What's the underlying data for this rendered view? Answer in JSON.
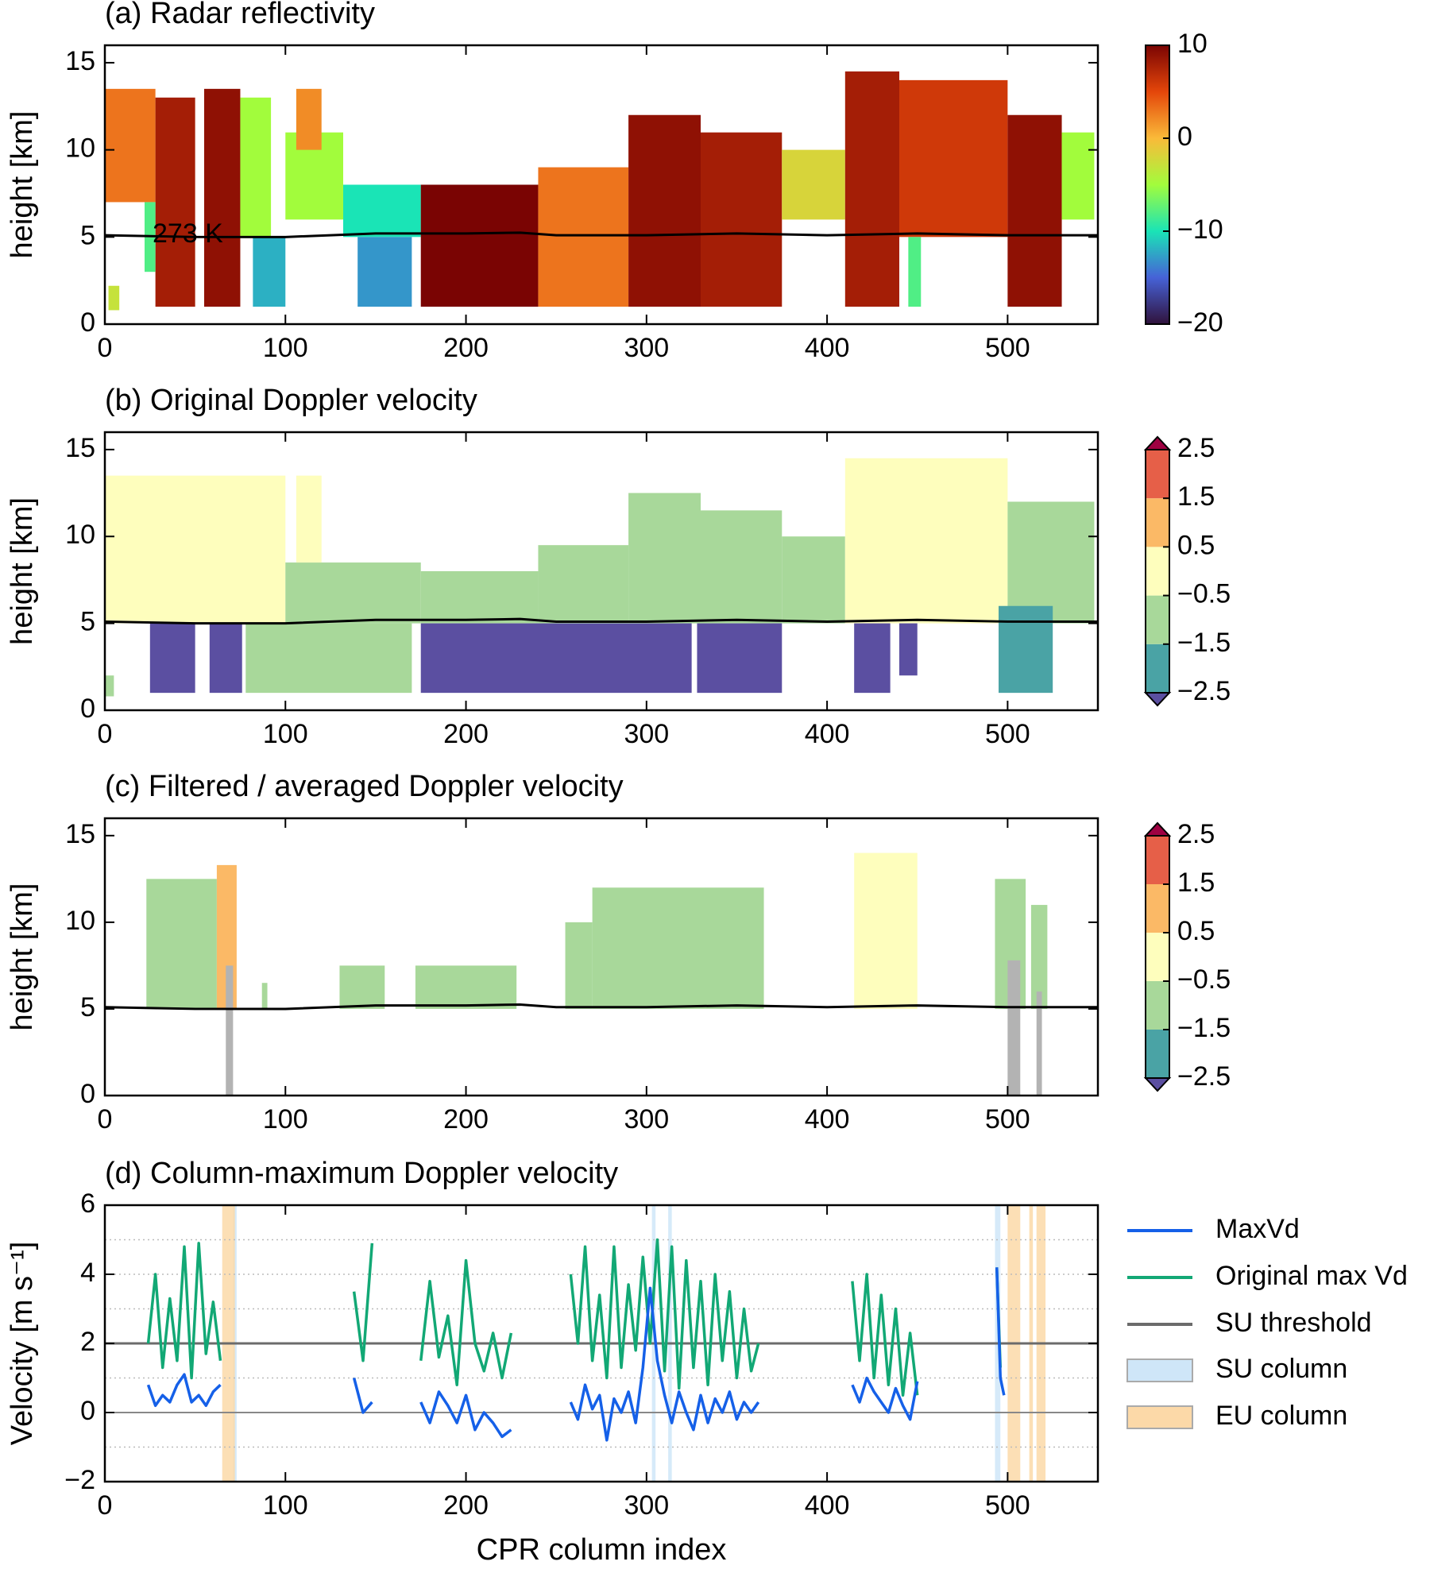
{
  "chart_data": [
    {
      "type": "heatmap",
      "title": "(a) Radar reflectivity",
      "ylabel": "height [km]",
      "xlim": [
        0,
        550
      ],
      "xticks": [
        0,
        100,
        200,
        300,
        400,
        500
      ],
      "ylim": [
        0,
        16
      ],
      "yticks": [
        0,
        5,
        10,
        15
      ],
      "segments": [
        [
          0,
          28,
          7,
          13.5,
          3
        ],
        [
          2,
          8,
          0.8,
          2.2,
          -3
        ],
        [
          28,
          50,
          1,
          13,
          8
        ],
        [
          22,
          28,
          3,
          7,
          -8
        ],
        [
          55,
          75,
          1,
          13.5,
          9
        ],
        [
          75,
          92,
          5,
          13,
          -5
        ],
        [
          100,
          132,
          6,
          11,
          -5
        ],
        [
          106,
          120,
          10,
          13.5,
          2
        ],
        [
          82,
          100,
          1,
          5,
          -12
        ],
        [
          132,
          175,
          5,
          8,
          -10
        ],
        [
          140,
          170,
          1,
          5,
          -13
        ],
        [
          175,
          240,
          1,
          8,
          10
        ],
        [
          240,
          290,
          1,
          9,
          3
        ],
        [
          290,
          330,
          1,
          12,
          9
        ],
        [
          330,
          375,
          1,
          11,
          8
        ],
        [
          375,
          410,
          6,
          10,
          -2
        ],
        [
          410,
          440,
          1,
          14.5,
          8
        ],
        [
          440,
          500,
          5,
          14,
          6
        ],
        [
          445,
          452,
          1,
          5,
          -8
        ],
        [
          500,
          530,
          1,
          12,
          9
        ],
        [
          530,
          548,
          6,
          11,
          -5
        ]
      ],
      "isotherm": {
        "label": "273 K",
        "x": [
          0,
          50,
          100,
          150,
          200,
          230,
          250,
          300,
          350,
          400,
          450,
          500,
          550
        ],
        "y": [
          5.1,
          5.0,
          5.0,
          5.2,
          5.2,
          5.25,
          5.1,
          5.1,
          5.2,
          5.1,
          5.2,
          5.1,
          5.1
        ]
      },
      "colorbar": {
        "kind": "continuous",
        "clim": [
          -20,
          10
        ],
        "ticks": [
          10,
          0,
          {
            "value": -10,
            "label": "−10"
          },
          {
            "value": -20,
            "label": "−20"
          }
        ],
        "colors": [
          "#30123b",
          "#4662d7",
          "#1ae4b6",
          "#a2fc3c",
          "#faba39",
          "#e4460a",
          "#7a0403"
        ]
      }
    },
    {
      "type": "heatmap",
      "title": "(b) Original Doppler velocity",
      "ylabel": "height [km]",
      "xlim": [
        0,
        550
      ],
      "xticks": [
        0,
        100,
        200,
        300,
        400,
        500
      ],
      "ylim": [
        0,
        16
      ],
      "yticks": [
        0,
        5,
        10,
        15
      ],
      "segments": [
        [
          0,
          100,
          5,
          13.5,
          -0.3
        ],
        [
          100,
          175,
          5,
          8.5,
          -0.8
        ],
        [
          106,
          120,
          8.5,
          13.5,
          -0.2
        ],
        [
          175,
          240,
          5,
          8,
          -0.9
        ],
        [
          240,
          290,
          5,
          9.5,
          -0.6
        ],
        [
          290,
          330,
          5,
          12.5,
          -0.8
        ],
        [
          330,
          375,
          5,
          11.5,
          -0.7
        ],
        [
          375,
          410,
          5,
          10,
          -0.9
        ],
        [
          410,
          500,
          5,
          14.5,
          -0.4
        ],
        [
          500,
          548,
          5,
          12,
          -0.6
        ],
        [
          0,
          5,
          0.8,
          2,
          -1
        ],
        [
          25,
          50,
          1,
          5,
          -3
        ],
        [
          58,
          76,
          1,
          5,
          -3
        ],
        [
          78,
          170,
          1,
          5,
          -1
        ],
        [
          175,
          325,
          1,
          5,
          -3
        ],
        [
          328,
          375,
          1,
          5,
          -3
        ],
        [
          415,
          435,
          1,
          5,
          -3
        ],
        [
          440,
          450,
          2,
          5,
          -3
        ],
        [
          495,
          525,
          1,
          6,
          -2
        ]
      ],
      "isotherm": {
        "x": [
          0,
          50,
          100,
          150,
          200,
          230,
          250,
          300,
          350,
          400,
          450,
          500,
          550
        ],
        "y": [
          5.1,
          5.0,
          5.0,
          5.2,
          5.2,
          5.25,
          5.1,
          5.1,
          5.2,
          5.1,
          5.2,
          5.1,
          5.1
        ]
      },
      "colorbar": {
        "kind": "discrete",
        "levels": [
          {
            "value": -2.5,
            "label": "−2.5"
          },
          {
            "value": -1.5,
            "label": "−1.5"
          },
          {
            "value": -0.5,
            "label": "−0.5"
          },
          0.5,
          1.5,
          2.5
        ],
        "colors": [
          "#4aa3a5",
          "#a8d89a",
          "#fefebd",
          "#fbb966",
          "#e65f48"
        ],
        "under": "#5b4fa1",
        "over": "#9e0142"
      }
    },
    {
      "type": "heatmap",
      "title": "(c) Filtered / averaged Doppler velocity",
      "ylabel": "height [km]",
      "xlim": [
        0,
        550
      ],
      "xticks": [
        0,
        100,
        200,
        300,
        400,
        500
      ],
      "ylim": [
        0,
        16
      ],
      "yticks": [
        0,
        5,
        10,
        15
      ],
      "segments": [
        [
          23,
          62,
          5,
          12.5,
          -1
        ],
        [
          62,
          73,
          5,
          13.3,
          0.8
        ],
        [
          87,
          90,
          5,
          6.5,
          -1
        ],
        [
          130,
          155,
          5,
          7.5,
          -0.8
        ],
        [
          172,
          228,
          5,
          7.5,
          -0.7
        ],
        [
          255,
          270,
          5,
          10,
          -0.8
        ],
        [
          270,
          365,
          5,
          12,
          -1.1
        ],
        [
          415,
          450,
          5,
          14,
          -0.3
        ],
        [
          493,
          510,
          5,
          12.5,
          -1
        ],
        [
          513,
          522,
          5,
          11,
          -0.8
        ]
      ],
      "grey_columns": {
        "color": "#b3b3b3",
        "ranges": [
          [
            67,
            71,
            7.5
          ],
          [
            500,
            507,
            7.8
          ],
          [
            516,
            519,
            6
          ]
        ]
      },
      "isotherm": {
        "x": [
          0,
          50,
          100,
          150,
          200,
          230,
          250,
          300,
          350,
          400,
          450,
          500,
          550
        ],
        "y": [
          5.1,
          5.0,
          5.0,
          5.2,
          5.2,
          5.25,
          5.1,
          5.1,
          5.2,
          5.1,
          5.2,
          5.1,
          5.1
        ]
      },
      "colorbar": {
        "kind": "discrete",
        "levels": [
          {
            "value": -2.5,
            "label": "−2.5"
          },
          {
            "value": -1.5,
            "label": "−1.5"
          },
          {
            "value": -0.5,
            "label": "−0.5"
          },
          0.5,
          1.5,
          2.5
        ],
        "colors": [
          "#4aa3a5",
          "#a8d89a",
          "#fefebd",
          "#fbb966",
          "#e65f48"
        ],
        "under": "#5b4fa1",
        "over": "#9e0142"
      }
    },
    {
      "type": "line",
      "title": "(d) Column-maximum Doppler velocity",
      "ylabel": "Velocity [m s⁻¹]",
      "xlabel": "CPR column index",
      "xlim": [
        0,
        550
      ],
      "xticks": [
        0,
        100,
        200,
        300,
        400,
        500
      ],
      "ylim": [
        -2,
        6
      ],
      "yticks": [
        {
          "value": -2,
          "label": "−2"
        },
        0,
        2,
        4,
        6
      ],
      "minor_grid": [
        -1,
        1,
        3,
        5
      ],
      "zero_line": 0,
      "x": [
        24,
        28,
        32,
        36,
        40,
        44,
        48,
        52,
        56,
        60,
        64,
        76,
        138,
        143,
        148,
        160,
        175,
        180,
        185,
        190,
        195,
        200,
        205,
        210,
        215,
        220,
        225,
        240,
        258,
        262,
        266,
        270,
        274,
        278,
        282,
        286,
        290,
        294,
        298,
        302,
        306,
        310,
        314,
        318,
        322,
        326,
        330,
        334,
        338,
        342,
        346,
        350,
        354,
        358,
        362,
        380,
        414,
        418,
        422,
        426,
        430,
        434,
        438,
        442,
        446,
        450,
        470,
        494,
        496,
        498
      ],
      "series": [
        {
          "name": "MaxVd",
          "color": "#1560e8",
          "values": [
            0.8,
            0.2,
            0.5,
            0.3,
            0.8,
            1.1,
            0.3,
            0.5,
            0.2,
            0.6,
            0.8,
            null,
            1.0,
            0.0,
            0.3,
            null,
            0.3,
            -0.3,
            0.6,
            0.2,
            -0.3,
            0.5,
            -0.5,
            0.0,
            -0.3,
            -0.7,
            -0.5,
            null,
            0.3,
            -0.2,
            0.8,
            0.1,
            0.5,
            -0.8,
            0.4,
            0.0,
            0.6,
            -0.3,
            1.3,
            3.6,
            1.5,
            0.5,
            -0.3,
            0.6,
            0.0,
            -0.5,
            0.5,
            -0.3,
            0.4,
            0.0,
            0.6,
            -0.2,
            0.3,
            0.0,
            0.3,
            null,
            0.8,
            0.3,
            1.0,
            0.6,
            0.3,
            0.0,
            0.7,
            0.2,
            -0.2,
            0.9,
            null,
            4.2,
            1.0,
            0.5
          ]
        },
        {
          "name": "Original max Vd",
          "color": "#12a875",
          "values": [
            2.0,
            4.0,
            1.3,
            3.3,
            1.5,
            4.8,
            1.0,
            4.9,
            1.7,
            3.2,
            1.5,
            null,
            3.5,
            1.5,
            4.9,
            null,
            1.5,
            3.8,
            1.6,
            2.8,
            0.8,
            4.4,
            2.0,
            1.2,
            2.3,
            1.0,
            2.3,
            null,
            4.0,
            2.0,
            4.8,
            1.5,
            3.4,
            1.0,
            4.8,
            1.3,
            3.7,
            1.8,
            4.5,
            2.0,
            5.0,
            1.2,
            4.8,
            0.7,
            4.4,
            1.3,
            3.8,
            0.8,
            4.0,
            1.5,
            3.5,
            1.0,
            3.0,
            1.2,
            2.0,
            null,
            3.8,
            1.5,
            4.0,
            1.0,
            3.4,
            0.8,
            3.0,
            0.5,
            2.3,
            0.5,
            null,
            4.2,
            1.3,
            null
          ]
        }
      ],
      "threshold": {
        "name": "SU threshold",
        "value": 2,
        "color": "#6b6b6b"
      },
      "su_columns": {
        "name": "SU column",
        "color": "#cfe6f8",
        "ranges": [
          [
            71,
            73
          ],
          [
            303,
            305
          ],
          [
            312,
            314
          ],
          [
            493,
            496
          ]
        ]
      },
      "eu_columns": {
        "name": "EU column",
        "color": "#fcd9a8",
        "ranges": [
          [
            65,
            72
          ],
          [
            500,
            507
          ],
          [
            512,
            514
          ],
          [
            516,
            521
          ]
        ]
      }
    }
  ]
}
